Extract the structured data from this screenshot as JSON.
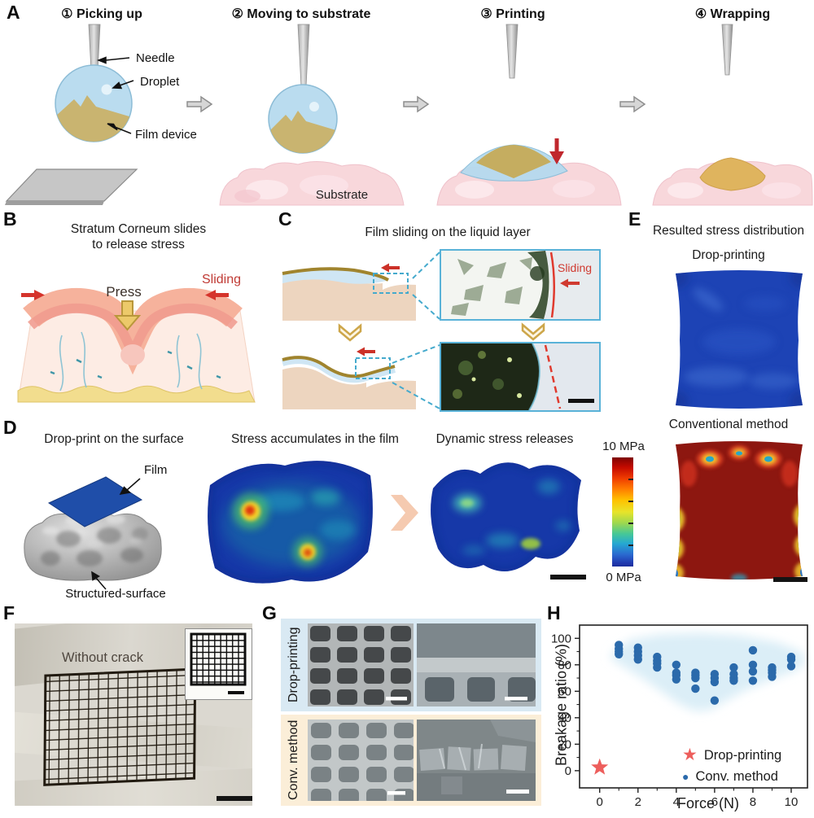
{
  "colors": {
    "accent_red": "#cc3128",
    "droplet_blue": "#badcef",
    "film_khaki": "#c9b168",
    "substrate_pink": "#f8d7db",
    "stress_map_blue": "#1d43b5",
    "stress_map_red": "#8d1710",
    "panel_g_blue_bg": "#d9e9f3",
    "panel_g_cream_bg": "#fbeed8",
    "chart_band_blue": "#d9edf7",
    "chart_dot_blue": "#2b6aab",
    "chart_star_red": "#ed5e5c"
  },
  "icons": {
    "step_arrow_right": "⇨",
    "press_arrow_down": "⬇",
    "chevron_right": "❯",
    "chevron_down": "⌄",
    "star_marker": "★",
    "dot_marker": "●"
  },
  "panels": {
    "a": {
      "label": "A",
      "steps": [
        "① Picking up",
        "② Moving to substrate",
        "③ Printing",
        "④ Wrapping"
      ],
      "needle_label": "Needle",
      "droplet_label": "Droplet",
      "film_device_label": "Film device",
      "substrate_label": "Substrate"
    },
    "b": {
      "label": "B",
      "title_line1": "Stratum Corneum slides",
      "title_line2": "to release stress",
      "press_label": "Press",
      "sliding_label": "Sliding"
    },
    "c": {
      "label": "C",
      "title": "Film sliding on the liquid layer",
      "sliding_label": "Sliding"
    },
    "d": {
      "label": "D",
      "left_title": "Drop-print on the surface",
      "film_label": "Film",
      "surface_label": "Structured-surface",
      "middle_title": "Stress accumulates in the film",
      "right_title": "Dynamic stress releases"
    },
    "e": {
      "label": "E",
      "title": "Resulted stress distribution",
      "top_map_title": "Drop-printing",
      "bottom_map_title": "Conventional method"
    },
    "colorbar": {
      "max_label": "10 MPa",
      "min_label": "0 MPa"
    },
    "f": {
      "label": "F",
      "annotation": "Without crack"
    },
    "g": {
      "label": "G",
      "top_row_label": "Drop-printing",
      "bottom_row_label": "Conv. method"
    },
    "h": {
      "label": "H"
    }
  },
  "chart_data": {
    "type": "scatter",
    "title": "",
    "xlabel": "Force (N)",
    "ylabel": "Breakage ratio (%)",
    "xlim": [
      -1.05,
      10.85
    ],
    "ylim": [
      -13,
      110
    ],
    "xticks": [
      0,
      2,
      4,
      6,
      8,
      10
    ],
    "xminor": [
      1,
      3,
      5,
      7,
      9
    ],
    "yticks": [
      0,
      20,
      40,
      60,
      80,
      100
    ],
    "yminor": [
      10,
      30,
      50,
      70,
      90
    ],
    "grid": false,
    "legend_position": "lower right",
    "band": {
      "color": "#d9edf7",
      "points": [
        [
          0.7,
          90
        ],
        [
          1.6,
          99
        ],
        [
          3.2,
          103
        ],
        [
          5.2,
          104
        ],
        [
          7.4,
          102
        ],
        [
          9.3,
          97
        ],
        [
          10.5,
          90
        ],
        [
          10.8,
          83
        ],
        [
          10.3,
          76
        ],
        [
          9.2,
          70
        ],
        [
          7.8,
          62
        ],
        [
          6.6,
          53
        ],
        [
          5.8,
          46
        ],
        [
          5.0,
          45
        ],
        [
          4.2,
          50
        ],
        [
          3.2,
          60
        ],
        [
          2.2,
          70
        ],
        [
          1.2,
          79
        ],
        [
          0.55,
          85
        ]
      ]
    },
    "series": [
      {
        "name": "Drop-printing",
        "marker": "star",
        "color": "#ed5e5c",
        "points": [
          [
            0,
            2.5
          ]
        ]
      },
      {
        "name": "Conv. method",
        "marker": "circle",
        "color": "#2b6aab",
        "points": [
          [
            1,
            88
          ],
          [
            1,
            90
          ],
          [
            1,
            92
          ],
          [
            1,
            95
          ],
          [
            2,
            84
          ],
          [
            2,
            87
          ],
          [
            2,
            90
          ],
          [
            2,
            93
          ],
          [
            3,
            78
          ],
          [
            3,
            81
          ],
          [
            3,
            83
          ],
          [
            3,
            86
          ],
          [
            4,
            69
          ],
          [
            4,
            72
          ],
          [
            4,
            74
          ],
          [
            4,
            80
          ],
          [
            5,
            62
          ],
          [
            5,
            70
          ],
          [
            5,
            72
          ],
          [
            5,
            74
          ],
          [
            6,
            53
          ],
          [
            6,
            67
          ],
          [
            6,
            70
          ],
          [
            6,
            73
          ],
          [
            7,
            68
          ],
          [
            7,
            70
          ],
          [
            7,
            73
          ],
          [
            7,
            78
          ],
          [
            8,
            68
          ],
          [
            8,
            75
          ],
          [
            8,
            80
          ],
          [
            8,
            91
          ],
          [
            9,
            71
          ],
          [
            9,
            74
          ],
          [
            9,
            76
          ],
          [
            9,
            78
          ],
          [
            10,
            79
          ],
          [
            10,
            84
          ],
          [
            10,
            86
          ]
        ]
      }
    ]
  }
}
